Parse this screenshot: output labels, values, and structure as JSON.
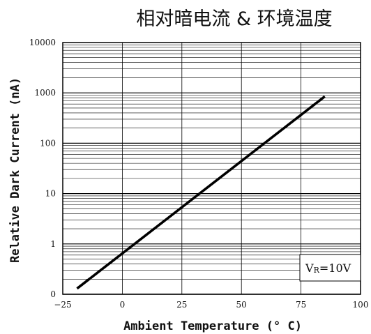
{
  "chart_data": {
    "type": "line",
    "title": "相对暗电流 & 环境温度",
    "xlabel": "Ambient Temperature (° C)",
    "ylabel": "Relative Dark Current (nA)",
    "yscale": "log",
    "xlim": [
      -25,
      100
    ],
    "ylim": [
      0.1,
      10000
    ],
    "x_ticks": [
      -25,
      0,
      25,
      50,
      75,
      100
    ],
    "y_ticks": [
      {
        "value": 0.1,
        "label": "0"
      },
      {
        "value": 1,
        "label": "1"
      },
      {
        "value": 10,
        "label": "10"
      },
      {
        "value": 100,
        "label": "100"
      },
      {
        "value": 1000,
        "label": "1000"
      },
      {
        "value": 10000,
        "label": "10000"
      }
    ],
    "grid": true,
    "series": [
      {
        "x": [
          -19,
          85
        ],
        "y": [
          0.13,
          850
        ]
      }
    ],
    "annotation": {
      "main": "V",
      "sub": "R",
      "rest": "=10V",
      "position": "bottom-right"
    }
  }
}
